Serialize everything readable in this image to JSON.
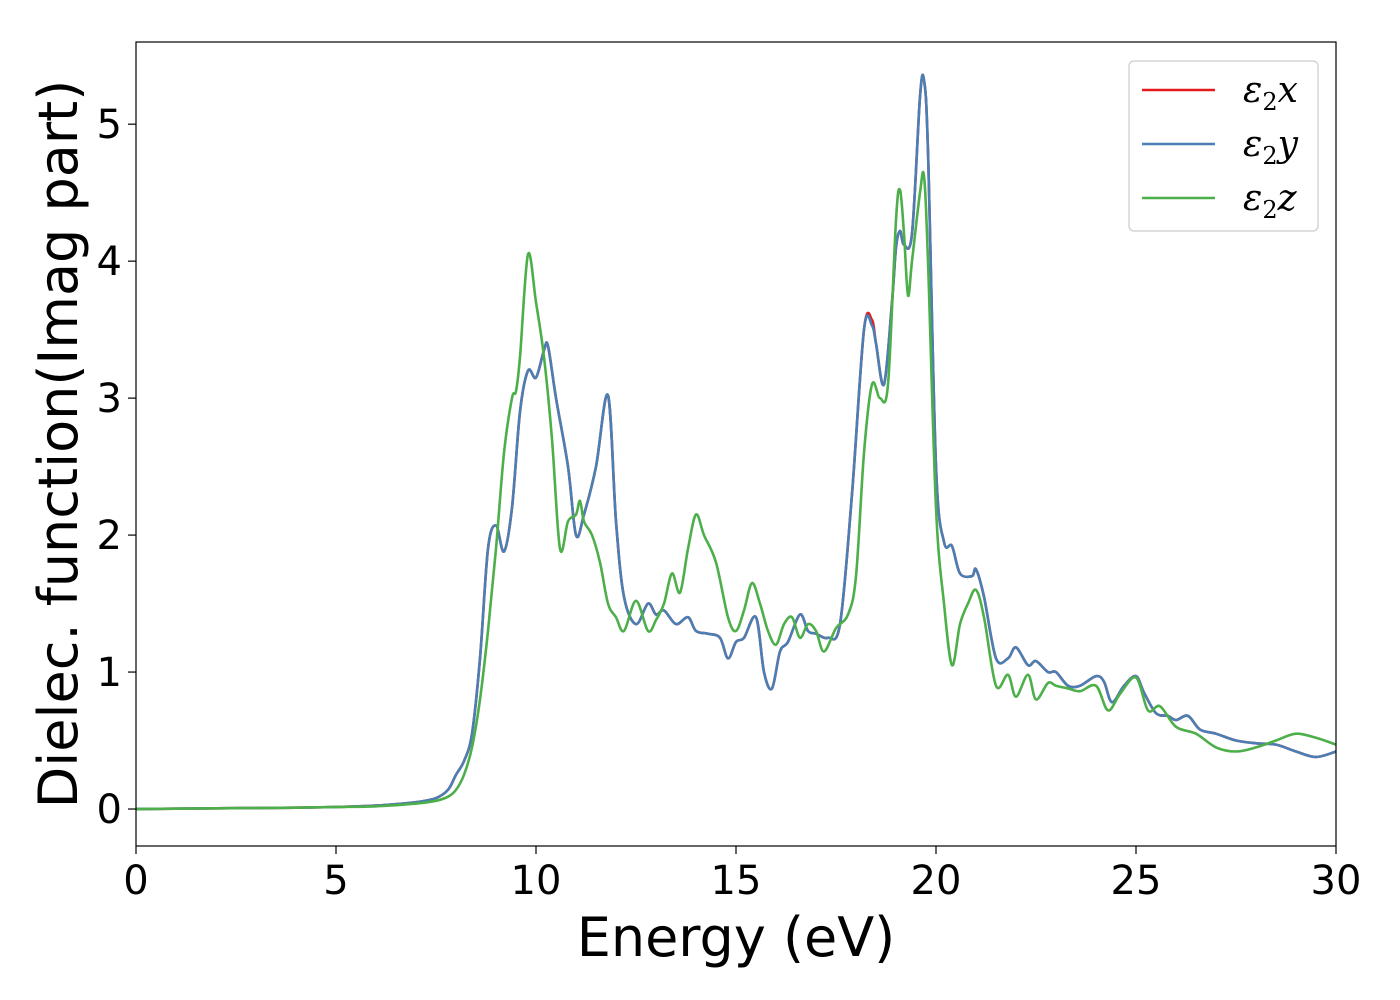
{
  "chart_data": {
    "type": "line",
    "title": "",
    "xlabel": "Energy (eV)",
    "ylabel": "Dielec. function(Imag part)",
    "xlim": [
      0,
      30
    ],
    "ylim": [
      -0.27,
      5.6
    ],
    "xticks": [
      0,
      5,
      10,
      15,
      20,
      25,
      30
    ],
    "yticks": [
      0,
      1,
      2,
      3,
      4,
      5
    ],
    "grid": false,
    "legend": "top-right",
    "series": [
      {
        "name": "ε2x",
        "name_base": "ε",
        "name_sub": "2",
        "name_var": "x",
        "color": "#e41a1c",
        "x": [
          0,
          2,
          4,
          5,
          6,
          7,
          7.5,
          7.8,
          8.0,
          8.2,
          8.4,
          8.6,
          8.8,
          9.0,
          9.2,
          9.4,
          9.6,
          9.8,
          10.0,
          10.2,
          10.3,
          10.5,
          10.8,
          11.0,
          11.2,
          11.5,
          11.8,
          12.0,
          12.2,
          12.5,
          12.8,
          13.0,
          13.2,
          13.5,
          13.8,
          14.0,
          14.3,
          14.6,
          14.8,
          15.0,
          15.2,
          15.5,
          15.7,
          15.9,
          16.1,
          16.3,
          16.6,
          16.8,
          17.0,
          17.3,
          17.6,
          17.9,
          18.2,
          18.4,
          18.5,
          18.7,
          18.9,
          19.0,
          19.1,
          19.2,
          19.4,
          19.6,
          19.7,
          19.8,
          20.0,
          20.2,
          20.4,
          20.6,
          20.9,
          21.0,
          21.2,
          21.5,
          21.8,
          22.0,
          22.3,
          22.5,
          22.8,
          23.0,
          23.3,
          23.6,
          24.0,
          24.2,
          24.4,
          24.7,
          25.0,
          25.2,
          25.5,
          25.8,
          26.0,
          26.3,
          26.6,
          27.0,
          27.5,
          28.0,
          28.5,
          29.0,
          29.5,
          30.0
        ],
        "values": [
          0,
          0.005,
          0.01,
          0.015,
          0.025,
          0.05,
          0.08,
          0.14,
          0.25,
          0.35,
          0.55,
          1.1,
          1.9,
          2.07,
          1.88,
          2.2,
          2.9,
          3.2,
          3.15,
          3.35,
          3.38,
          3.0,
          2.5,
          2.0,
          2.15,
          2.5,
          3.02,
          2.1,
          1.55,
          1.35,
          1.5,
          1.42,
          1.45,
          1.35,
          1.4,
          1.3,
          1.28,
          1.25,
          1.1,
          1.22,
          1.25,
          1.4,
          1.0,
          0.88,
          1.15,
          1.22,
          1.42,
          1.3,
          1.28,
          1.25,
          1.35,
          2.3,
          3.5,
          3.57,
          3.4,
          3.1,
          3.7,
          4.1,
          4.22,
          4.12,
          4.2,
          5.2,
          5.32,
          4.8,
          2.5,
          1.95,
          1.92,
          1.72,
          1.7,
          1.75,
          1.55,
          1.1,
          1.1,
          1.18,
          1.05,
          1.08,
          1.0,
          1.0,
          0.9,
          0.9,
          0.97,
          0.93,
          0.78,
          0.9,
          0.97,
          0.85,
          0.7,
          0.68,
          0.65,
          0.68,
          0.58,
          0.55,
          0.5,
          0.48,
          0.47,
          0.42,
          0.38,
          0.42
        ]
      },
      {
        "name": "ε2y",
        "name_base": "ε",
        "name_sub": "2",
        "name_var": "y",
        "color": "#4a7fb5",
        "x": [
          0,
          2,
          4,
          5,
          6,
          7,
          7.5,
          7.8,
          8.0,
          8.2,
          8.4,
          8.6,
          8.8,
          9.0,
          9.2,
          9.4,
          9.6,
          9.8,
          10.0,
          10.2,
          10.3,
          10.5,
          10.8,
          11.0,
          11.2,
          11.5,
          11.8,
          12.0,
          12.2,
          12.5,
          12.8,
          13.0,
          13.2,
          13.5,
          13.8,
          14.0,
          14.3,
          14.6,
          14.8,
          15.0,
          15.2,
          15.5,
          15.7,
          15.9,
          16.1,
          16.3,
          16.6,
          16.8,
          17.0,
          17.3,
          17.6,
          17.9,
          18.2,
          18.4,
          18.5,
          18.7,
          18.9,
          19.0,
          19.1,
          19.2,
          19.4,
          19.6,
          19.7,
          19.8,
          20.0,
          20.2,
          20.4,
          20.6,
          20.9,
          21.0,
          21.2,
          21.5,
          21.8,
          22.0,
          22.3,
          22.5,
          22.8,
          23.0,
          23.3,
          23.6,
          24.0,
          24.2,
          24.4,
          24.7,
          25.0,
          25.2,
          25.5,
          25.8,
          26.0,
          26.3,
          26.6,
          27.0,
          27.5,
          28.0,
          28.5,
          29.0,
          29.5,
          30.0
        ],
        "values": [
          0,
          0.005,
          0.01,
          0.015,
          0.025,
          0.05,
          0.08,
          0.14,
          0.25,
          0.35,
          0.55,
          1.1,
          1.9,
          2.07,
          1.88,
          2.2,
          2.9,
          3.2,
          3.15,
          3.35,
          3.38,
          3.0,
          2.5,
          2.0,
          2.15,
          2.5,
          3.02,
          2.1,
          1.55,
          1.35,
          1.5,
          1.42,
          1.45,
          1.35,
          1.4,
          1.3,
          1.28,
          1.25,
          1.1,
          1.22,
          1.25,
          1.4,
          1.0,
          0.88,
          1.15,
          1.22,
          1.42,
          1.3,
          1.28,
          1.25,
          1.35,
          2.3,
          3.5,
          3.53,
          3.4,
          3.1,
          3.7,
          4.1,
          4.22,
          4.12,
          4.2,
          5.2,
          5.32,
          4.8,
          2.5,
          1.95,
          1.92,
          1.72,
          1.7,
          1.75,
          1.55,
          1.1,
          1.1,
          1.18,
          1.05,
          1.08,
          1.0,
          1.0,
          0.9,
          0.9,
          0.97,
          0.93,
          0.78,
          0.9,
          0.97,
          0.85,
          0.7,
          0.68,
          0.65,
          0.68,
          0.58,
          0.55,
          0.5,
          0.48,
          0.47,
          0.42,
          0.38,
          0.42
        ]
      },
      {
        "name": "ε2z",
        "name_base": "ε",
        "name_sub": "2",
        "name_var": "z",
        "color": "#4daf4a",
        "x": [
          0,
          2,
          4,
          5,
          6,
          7,
          7.5,
          7.8,
          8.0,
          8.2,
          8.4,
          8.6,
          8.8,
          9.0,
          9.2,
          9.4,
          9.5,
          9.6,
          9.8,
          10.0,
          10.2,
          10.4,
          10.6,
          10.8,
          11.0,
          11.1,
          11.2,
          11.4,
          11.6,
          11.8,
          12.0,
          12.2,
          12.5,
          12.8,
          13.0,
          13.2,
          13.4,
          13.6,
          13.8,
          14.0,
          14.2,
          14.5,
          14.8,
          15.0,
          15.2,
          15.4,
          15.6,
          15.8,
          16.0,
          16.2,
          16.4,
          16.6,
          16.8,
          17.0,
          17.2,
          17.5,
          17.8,
          18.0,
          18.2,
          18.4,
          18.6,
          18.8,
          19.0,
          19.1,
          19.2,
          19.3,
          19.4,
          19.6,
          19.7,
          19.8,
          20.0,
          20.2,
          20.4,
          20.6,
          20.8,
          21.0,
          21.2,
          21.5,
          21.8,
          22.0,
          22.3,
          22.5,
          22.8,
          23.0,
          23.3,
          23.6,
          24.0,
          24.3,
          24.6,
          25.0,
          25.3,
          25.6,
          26.0,
          26.5,
          27.0,
          27.5,
          28.0,
          28.5,
          29.0,
          29.5,
          30.0
        ],
        "values": [
          0,
          0.005,
          0.01,
          0.015,
          0.02,
          0.04,
          0.06,
          0.09,
          0.14,
          0.25,
          0.45,
          0.8,
          1.3,
          1.9,
          2.6,
          3.0,
          3.05,
          3.3,
          4.05,
          3.7,
          3.3,
          2.7,
          1.9,
          2.1,
          2.15,
          2.25,
          2.1,
          2.0,
          1.8,
          1.5,
          1.4,
          1.3,
          1.52,
          1.3,
          1.38,
          1.5,
          1.72,
          1.58,
          1.9,
          2.15,
          2.0,
          1.8,
          1.4,
          1.3,
          1.45,
          1.65,
          1.5,
          1.3,
          1.2,
          1.35,
          1.4,
          1.25,
          1.35,
          1.3,
          1.15,
          1.32,
          1.42,
          1.7,
          2.6,
          3.1,
          3.0,
          3.1,
          4.3,
          4.52,
          4.2,
          3.75,
          4.0,
          4.5,
          4.62,
          4.0,
          2.2,
          1.5,
          1.05,
          1.35,
          1.5,
          1.6,
          1.4,
          0.9,
          0.98,
          0.82,
          0.98,
          0.8,
          0.92,
          0.9,
          0.88,
          0.86,
          0.9,
          0.72,
          0.84,
          0.96,
          0.72,
          0.75,
          0.6,
          0.55,
          0.45,
          0.42,
          0.45,
          0.5,
          0.55,
          0.52,
          0.47
        ]
      }
    ]
  }
}
